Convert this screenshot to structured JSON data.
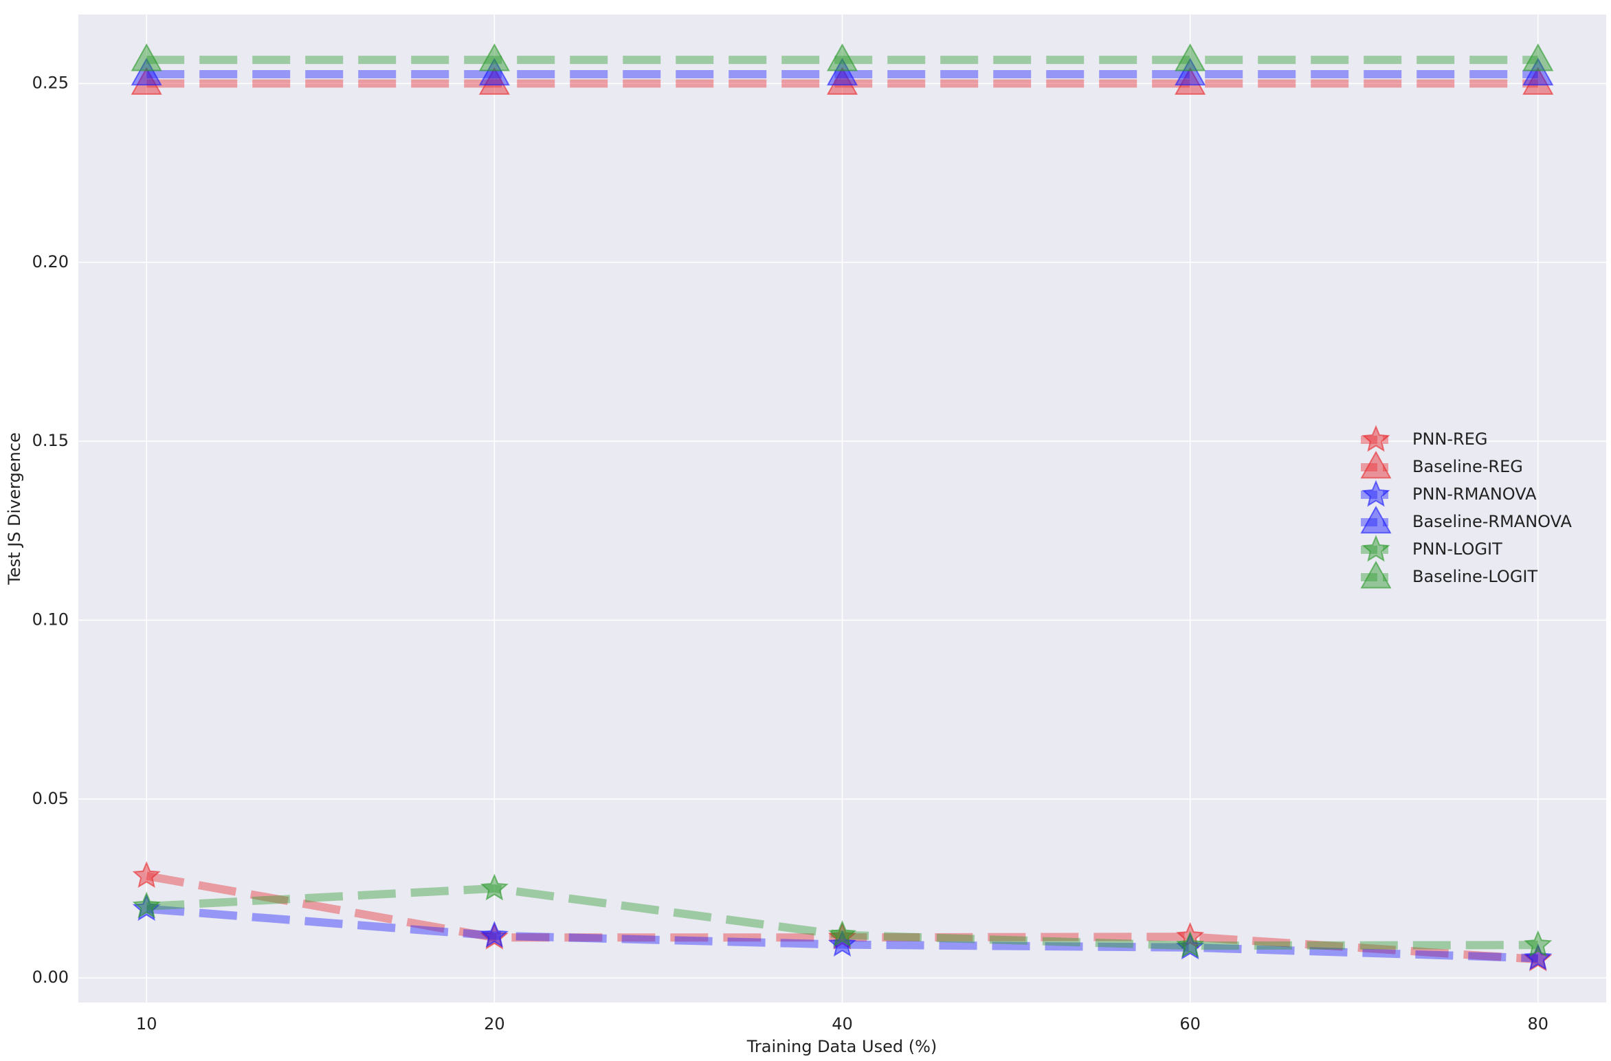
{
  "chart_data": {
    "type": "line",
    "xlabel": "Training Data Used (%)",
    "ylabel": "Test JS Divergence",
    "categories": [
      "10",
      "20",
      "40",
      "60",
      "80"
    ],
    "ylim": [
      -0.0069,
      0.2693
    ],
    "yticks": [
      {
        "value": 0,
        "label": "0.00"
      },
      {
        "value": 0.05,
        "label": "0.05"
      },
      {
        "value": 0.1,
        "label": "0.10"
      },
      {
        "value": 0.15,
        "label": "0.15"
      },
      {
        "value": 0.2,
        "label": "0.20"
      },
      {
        "value": 0.25,
        "label": "0.25"
      }
    ],
    "grid": true,
    "legend": "right",
    "series": [
      {
        "name": "PNN-REG",
        "color": "#e8262a",
        "marker": "star",
        "values": [
          0.0285,
          0.0113,
          0.0113,
          0.0115,
          0.0052
        ]
      },
      {
        "name": "Baseline-REG",
        "color": "#e8262a",
        "marker": "triangle",
        "values": [
          0.25,
          0.25,
          0.25,
          0.25,
          0.25
        ]
      },
      {
        "name": "PNN-RMANOVA",
        "color": "#1a1aff",
        "marker": "star",
        "values": [
          0.0193,
          0.0118,
          0.0093,
          0.0085,
          0.0055
        ]
      },
      {
        "name": "Baseline-RMANOVA",
        "color": "#1a1aff",
        "marker": "triangle",
        "values": [
          0.2526,
          0.2526,
          0.2526,
          0.2526,
          0.2526
        ]
      },
      {
        "name": "PNN-LOGIT",
        "color": "#2a9a2a",
        "marker": "star",
        "values": [
          0.02,
          0.025,
          0.012,
          0.009,
          0.0092
        ]
      },
      {
        "name": "Baseline-LOGIT",
        "color": "#2a9a2a",
        "marker": "triangle",
        "values": [
          0.2566,
          0.2566,
          0.2566,
          0.2566,
          0.2566
        ]
      }
    ]
  }
}
